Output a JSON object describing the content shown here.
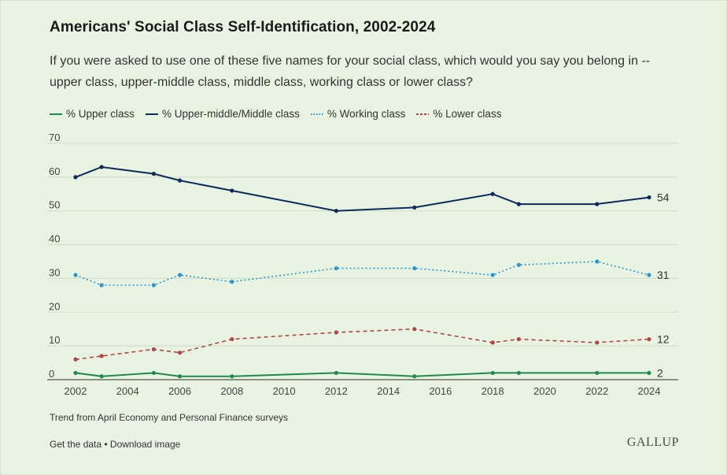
{
  "title": "Americans' Social Class Self-Identification, 2002-2024",
  "subtitle": "If you were asked to use one of these five names for your social class, which would you say you belong in -- upper class, upper-middle class, middle class, working class or lower class?",
  "note": "Trend from April Economy and Personal Finance surveys",
  "links": {
    "get_data": "Get the data",
    "separator": " • ",
    "download": "Download image"
  },
  "logo_text": "GALLUP",
  "chart_data": {
    "type": "line",
    "title": "Americans' Social Class Self-Identification, 2002-2024",
    "xlabel": "",
    "ylabel": "",
    "xlim": [
      2002,
      2024
    ],
    "ylim": [
      0,
      70
    ],
    "grid": true,
    "legend_position": "top-left",
    "y_ticks": [
      0,
      10,
      20,
      30,
      40,
      50,
      60,
      70
    ],
    "x_ticks": [
      2002,
      2004,
      2006,
      2008,
      2010,
      2012,
      2014,
      2016,
      2018,
      2020,
      2022,
      2024
    ],
    "series": [
      {
        "name": "% Upper class",
        "color": "#1e8a4c",
        "style": "solid",
        "x": [
          2002,
          2003,
          2005,
          2006,
          2008,
          2012,
          2015,
          2018,
          2019,
          2022,
          2024
        ],
        "values": [
          2,
          1,
          2,
          1,
          1,
          2,
          1,
          2,
          2,
          2,
          2
        ],
        "end_label": "2"
      },
      {
        "name": "% Upper-middle/Middle class",
        "color": "#0d2a5c",
        "style": "solid",
        "x": [
          2002,
          2003,
          2005,
          2006,
          2008,
          2012,
          2015,
          2018,
          2019,
          2022,
          2024
        ],
        "values": [
          60,
          63,
          61,
          59,
          56,
          50,
          51,
          55,
          52,
          52,
          54
        ],
        "end_label": "54"
      },
      {
        "name": "% Working class",
        "color": "#2f95cf",
        "style": "dotted",
        "x": [
          2002,
          2003,
          2005,
          2006,
          2008,
          2012,
          2015,
          2018,
          2019,
          2022,
          2024
        ],
        "values": [
          31,
          28,
          28,
          31,
          29,
          33,
          33,
          31,
          34,
          35,
          31
        ],
        "end_label": "31"
      },
      {
        "name": "% Lower class",
        "color": "#b04545",
        "style": "dashed",
        "x": [
          2002,
          2003,
          2005,
          2006,
          2008,
          2012,
          2015,
          2018,
          2019,
          2022,
          2024
        ],
        "values": [
          6,
          7,
          9,
          8,
          12,
          14,
          15,
          11,
          12,
          11,
          12
        ],
        "end_label": "12"
      }
    ]
  }
}
